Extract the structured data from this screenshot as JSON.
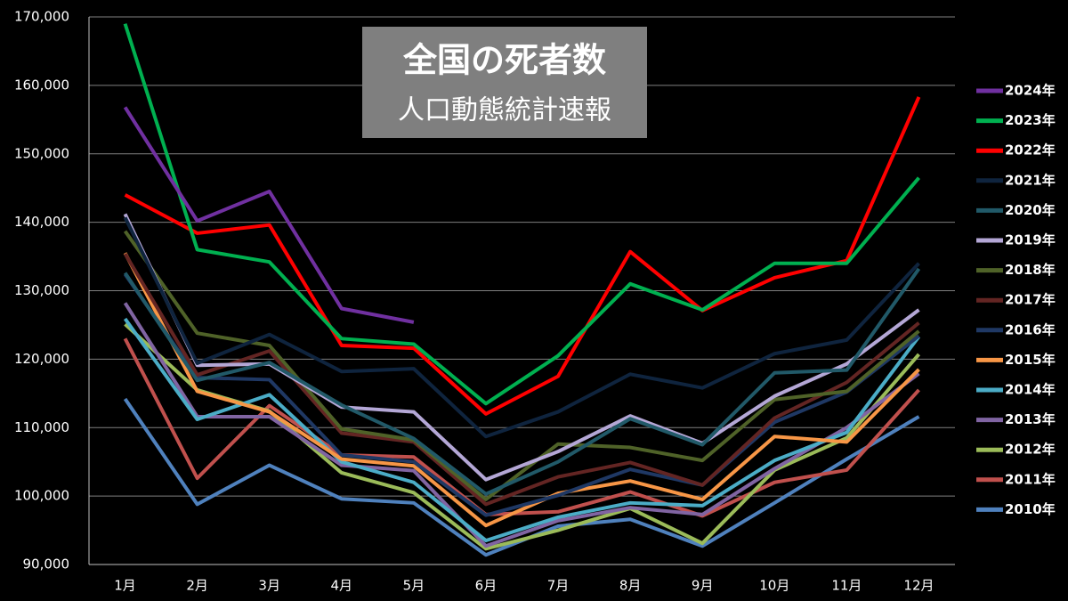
{
  "chart_data": {
    "type": "line",
    "title": "全国の死者数",
    "subtitle": "人口動態統計速報",
    "categories": [
      "1月",
      "2月",
      "3月",
      "4月",
      "5月",
      "6月",
      "7月",
      "8月",
      "9月",
      "10月",
      "11月",
      "12月"
    ],
    "ylim": [
      90000,
      170000
    ],
    "yticks": [
      {
        "value": 90000,
        "label": "90,000"
      },
      {
        "value": 100000,
        "label": "100,000"
      },
      {
        "value": 110000,
        "label": "110,000"
      },
      {
        "value": 120000,
        "label": "120,000"
      },
      {
        "value": 130000,
        "label": "130,000"
      },
      {
        "value": 140000,
        "label": "140,000"
      },
      {
        "value": 150000,
        "label": "150,000"
      },
      {
        "value": 160000,
        "label": "160,000"
      },
      {
        "value": 170000,
        "label": "170,000"
      }
    ],
    "grid": true,
    "legend": "right",
    "series": [
      {
        "name": "2024年",
        "color": "#7030a0",
        "values": [
          156800,
          140200,
          144500,
          127400,
          125400,
          null,
          null,
          null,
          null,
          null,
          null,
          null
        ]
      },
      {
        "name": "2023年",
        "color": "#00b050",
        "values": [
          169000,
          136000,
          134200,
          123000,
          122200,
          113500,
          120500,
          131000,
          127200,
          134000,
          134000,
          146500
        ]
      },
      {
        "name": "2022年",
        "color": "#ff0000",
        "values": [
          144000,
          138400,
          139600,
          122000,
          121600,
          112000,
          117500,
          135700,
          127100,
          131900,
          134400,
          158300
        ]
      },
      {
        "name": "2021年",
        "color": "#0f243e",
        "values": [
          140700,
          119400,
          123600,
          118200,
          118600,
          108700,
          112300,
          117800,
          115800,
          120800,
          122800,
          134000
        ]
      },
      {
        "name": "2020年",
        "color": "#215968",
        "values": [
          132600,
          116900,
          119500,
          113300,
          108400,
          100300,
          105000,
          111300,
          107500,
          118000,
          118400,
          133200
        ]
      },
      {
        "name": "2019年",
        "color": "#b4a7d6",
        "values": [
          141200,
          119100,
          119300,
          113000,
          112300,
          102400,
          106500,
          111700,
          107700,
          114600,
          119300,
          127200
        ]
      },
      {
        "name": "2018年",
        "color": "#4f6228",
        "values": [
          138700,
          123800,
          122000,
          109800,
          108200,
          99500,
          107600,
          107100,
          105200,
          114100,
          115300,
          124100
        ]
      },
      {
        "name": "2017年",
        "color": "#632523",
        "values": [
          135400,
          117700,
          121200,
          109200,
          107900,
          98800,
          102800,
          104900,
          101600,
          111400,
          116600,
          125300
        ]
      },
      {
        "name": "2016年",
        "color": "#1f3864",
        "values": [
          132400,
          117300,
          117000,
          106000,
          105000,
          97200,
          100100,
          103900,
          101600,
          110800,
          115200,
          123400
        ]
      },
      {
        "name": "2015年",
        "color": "#f79646",
        "values": [
          135500,
          115300,
          112300,
          105400,
          104400,
          95700,
          100400,
          102200,
          99500,
          108700,
          107900,
          118500
        ]
      },
      {
        "name": "2014年",
        "color": "#4bacc6",
        "values": [
          125900,
          111200,
          114800,
          105000,
          102000,
          93500,
          96900,
          99000,
          98600,
          105200,
          109300,
          123300
        ]
      },
      {
        "name": "2013年",
        "color": "#8064a2",
        "values": [
          128200,
          111600,
          111600,
          104500,
          103700,
          92700,
          96400,
          98300,
          97300,
          104000,
          110000,
          117900
        ]
      },
      {
        "name": "2012年",
        "color": "#9bbb59",
        "values": [
          125100,
          115500,
          112400,
          103400,
          100500,
          92300,
          95000,
          98200,
          93100,
          103800,
          108500,
          120700
        ]
      },
      {
        "name": "2011年",
        "color": "#c0504d",
        "values": [
          123000,
          102600,
          113200,
          106000,
          105700,
          97300,
          97700,
          100600,
          97100,
          102000,
          103800,
          115500
        ]
      },
      {
        "name": "2010年",
        "color": "#4f81bd",
        "values": [
          114200,
          98800,
          104500,
          99600,
          99000,
          91400,
          95600,
          96600,
          92700,
          99000,
          105400,
          111600
        ]
      }
    ]
  }
}
